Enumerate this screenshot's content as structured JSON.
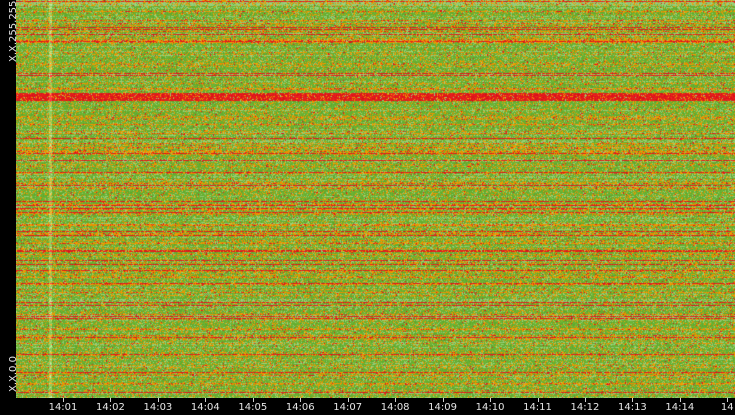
{
  "chart_data": {
    "type": "heatmap",
    "title": "",
    "xlabel": "",
    "ylabel": "",
    "x_tick_labels": [
      "14:01",
      "14:02",
      "14:03",
      "14:04",
      "14:05",
      "14:06",
      "14:07",
      "14:08",
      "14:09",
      "14:10",
      "14:11",
      "14:12",
      "14:13",
      "14:14",
      "14"
    ],
    "y_tick_labels": [
      "X.X.255.255",
      "X.X.0.0"
    ],
    "color_scale": [
      "#a8d890",
      "#66b032",
      "#f0a000",
      "#e31a1c"
    ],
    "grid": false,
    "legend": "none"
  }
}
